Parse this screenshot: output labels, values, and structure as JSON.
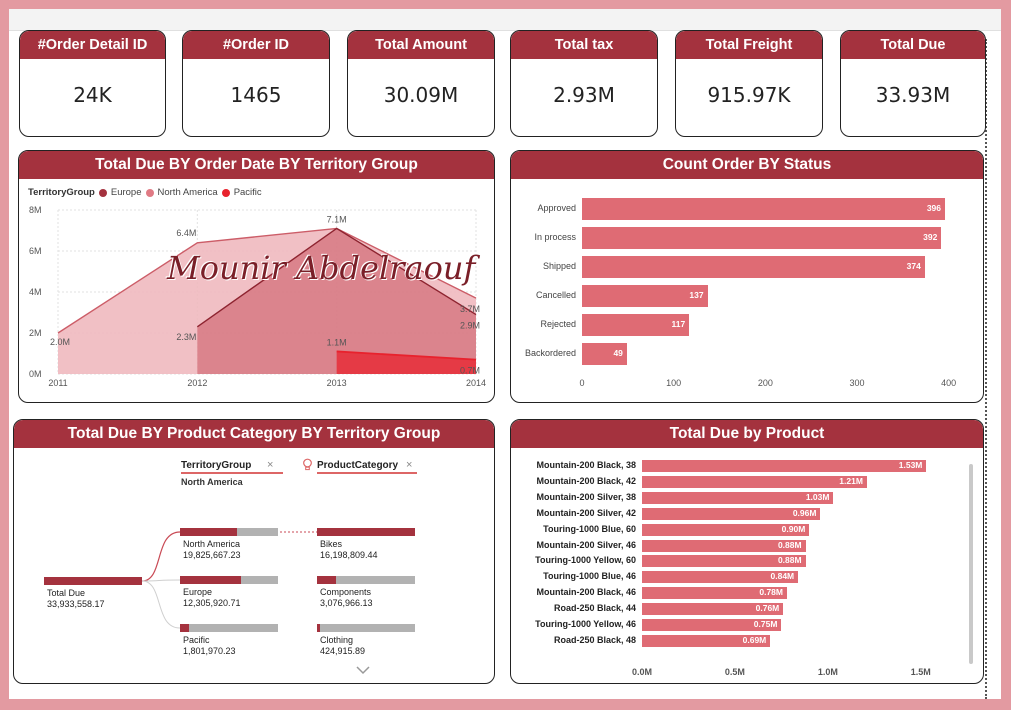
{
  "kpis": [
    {
      "label": "#Order Detail ID",
      "value": "24K"
    },
    {
      "label": "#Order ID",
      "value": "1465"
    },
    {
      "label": "Total Amount",
      "value": "30.09M"
    },
    {
      "label": "Total tax",
      "value": "2.93M"
    },
    {
      "label": "Total Freight",
      "value": "915.97K"
    },
    {
      "label": "Total Due",
      "value": "33.93M"
    }
  ],
  "watermark": "Mounir Abdelraouf",
  "area_chart": {
    "title": "Total Due BY Order Date BY Territory Group",
    "legend_title": "TerritoryGroup",
    "series_colors": {
      "Europe": "#a4323e",
      "North America": "#e07a84",
      "Pacific": "#e8222d"
    },
    "y_ticks": [
      "8M",
      "6M",
      "4M",
      "2M",
      "0M"
    ],
    "x_ticks": [
      "2011",
      "2012",
      "2013",
      "2014"
    ],
    "data_labels": [
      "2.0M",
      "6.4M",
      "7.1M",
      "3.7M",
      "2.3M",
      "2.9M",
      "1.1M",
      "0.7M"
    ]
  },
  "status_chart": {
    "title": "Count Order BY Status",
    "x_ticks": [
      "0",
      "100",
      "200",
      "300",
      "400"
    ],
    "value_labels": [
      "396",
      "392",
      "374",
      "137",
      "117",
      "49"
    ]
  },
  "decomp_tree": {
    "title": "Total Due BY Product Category BY Territory Group",
    "level1_header": "TerritoryGroup",
    "level1_selected": "North America",
    "level2_header": "ProductCategory",
    "close_glyph": "×",
    "root": {
      "name": "Total Due",
      "value": "33,933,558.17"
    },
    "territories": [
      {
        "name": "North America",
        "value": "19,825,667.23",
        "share": 0.58
      },
      {
        "name": "Europe",
        "value": "12,305,920.71",
        "share": 0.62
      },
      {
        "name": "Pacific",
        "value": "1,801,970.23",
        "share": 0.09
      }
    ],
    "categories": [
      {
        "name": "Bikes",
        "value": "16,198,809.44",
        "share": 1.0
      },
      {
        "name": "Components",
        "value": "3,076,966.13",
        "share": 0.19
      },
      {
        "name": "Clothing",
        "value": "424,915.89",
        "share": 0.03
      }
    ]
  },
  "product_chart": {
    "title": "Total Due by Product",
    "x_ticks": [
      "0.0M",
      "0.5M",
      "1.0M",
      "1.5M"
    ],
    "value_labels": [
      "1.53M",
      "1.21M",
      "1.03M",
      "0.96M",
      "0.90M",
      "0.88M",
      "0.88M",
      "0.84M",
      "0.78M",
      "0.76M",
      "0.75M",
      "0.69M"
    ]
  },
  "chart_data": [
    {
      "type": "area",
      "title": "Total Due BY Order Date BY Territory Group",
      "x": [
        "2011",
        "2012",
        "2013",
        "2014"
      ],
      "ylim": [
        0,
        8
      ],
      "yunit": "M",
      "series": [
        {
          "name": "North America",
          "values": [
            2.0,
            6.4,
            7.1,
            3.7
          ]
        },
        {
          "name": "Europe",
          "values": [
            null,
            2.3,
            7.1,
            2.9
          ]
        },
        {
          "name": "Pacific",
          "values": [
            null,
            null,
            1.1,
            0.7
          ]
        }
      ],
      "legend": "top-left"
    },
    {
      "type": "bar",
      "title": "Count Order BY Status",
      "orientation": "horizontal",
      "categories": [
        "Approved",
        "In process",
        "Shipped",
        "Cancelled",
        "Rejected",
        "Backordered"
      ],
      "values": [
        396,
        392,
        374,
        137,
        117,
        49
      ],
      "xlim": [
        0,
        420
      ]
    },
    {
      "type": "bar",
      "title": "Total Due by Product",
      "orientation": "horizontal",
      "categories": [
        "Mountain-200 Black, 38",
        "Mountain-200 Black, 42",
        "Mountain-200 Silver, 38",
        "Mountain-200 Silver, 42",
        "Touring-1000 Blue, 60",
        "Mountain-200 Silver, 46",
        "Touring-1000 Yellow, 60",
        "Touring-1000 Blue, 46",
        "Mountain-200 Black, 46",
        "Road-250 Black, 44",
        "Touring-1000 Yellow, 46",
        "Road-250 Black, 48"
      ],
      "values": [
        1.53,
        1.21,
        1.03,
        0.96,
        0.9,
        0.88,
        0.88,
        0.84,
        0.78,
        0.76,
        0.75,
        0.69
      ],
      "xlim": [
        0,
        1.7
      ],
      "xunit": "M"
    }
  ]
}
